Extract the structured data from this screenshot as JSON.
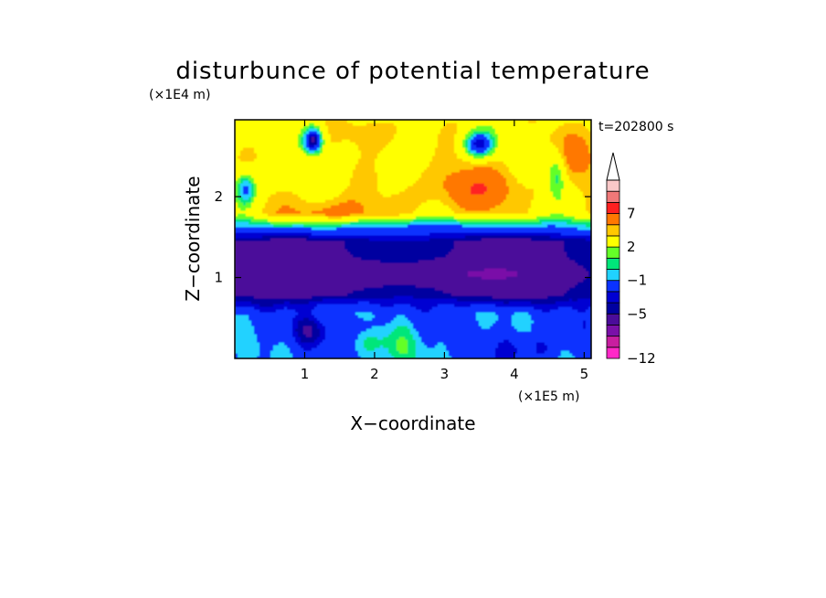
{
  "chart_data": {
    "type": "heatmap",
    "title": "disturbunce of potential temperature",
    "time_label": "t=202800 s",
    "xlabel": "X−coordinate",
    "ylabel": "Z−coordinate",
    "x_unit": "(×1E5 m)",
    "y_unit": "(×1E4 m)",
    "xlim": [
      0,
      5.1
    ],
    "ylim": [
      0,
      2.95
    ],
    "x_ticks": [
      1,
      2,
      3,
      4,
      5
    ],
    "x_tick_labels": [
      "1",
      "2",
      "3",
      "4",
      "5"
    ],
    "y_ticks": [
      1,
      2
    ],
    "y_tick_labels": [
      "1",
      "2"
    ],
    "colorbar": {
      "levels": [
        -12,
        -11,
        -9,
        -7,
        -5,
        -4,
        -3,
        -1,
        0,
        1,
        2,
        4,
        5,
        7,
        8,
        9
      ],
      "labels": [
        "−12",
        "−5",
        "−1",
        "2",
        "7"
      ],
      "label_levels": [
        -12,
        -5,
        -1,
        2,
        7
      ],
      "colors": [
        "#ff28c8",
        "#c81ea0",
        "#7a10a8",
        "#4b0c9a",
        "#0000a0",
        "#0000d2",
        "#0a32ff",
        "#20d2ff",
        "#00e67a",
        "#64ff28",
        "#ffff00",
        "#ffc800",
        "#ff7800",
        "#ff2020",
        "#f07878",
        "#fac8c8"
      ],
      "extend_top": true
    },
    "value_range": [
      -12,
      9
    ],
    "grid": false
  }
}
